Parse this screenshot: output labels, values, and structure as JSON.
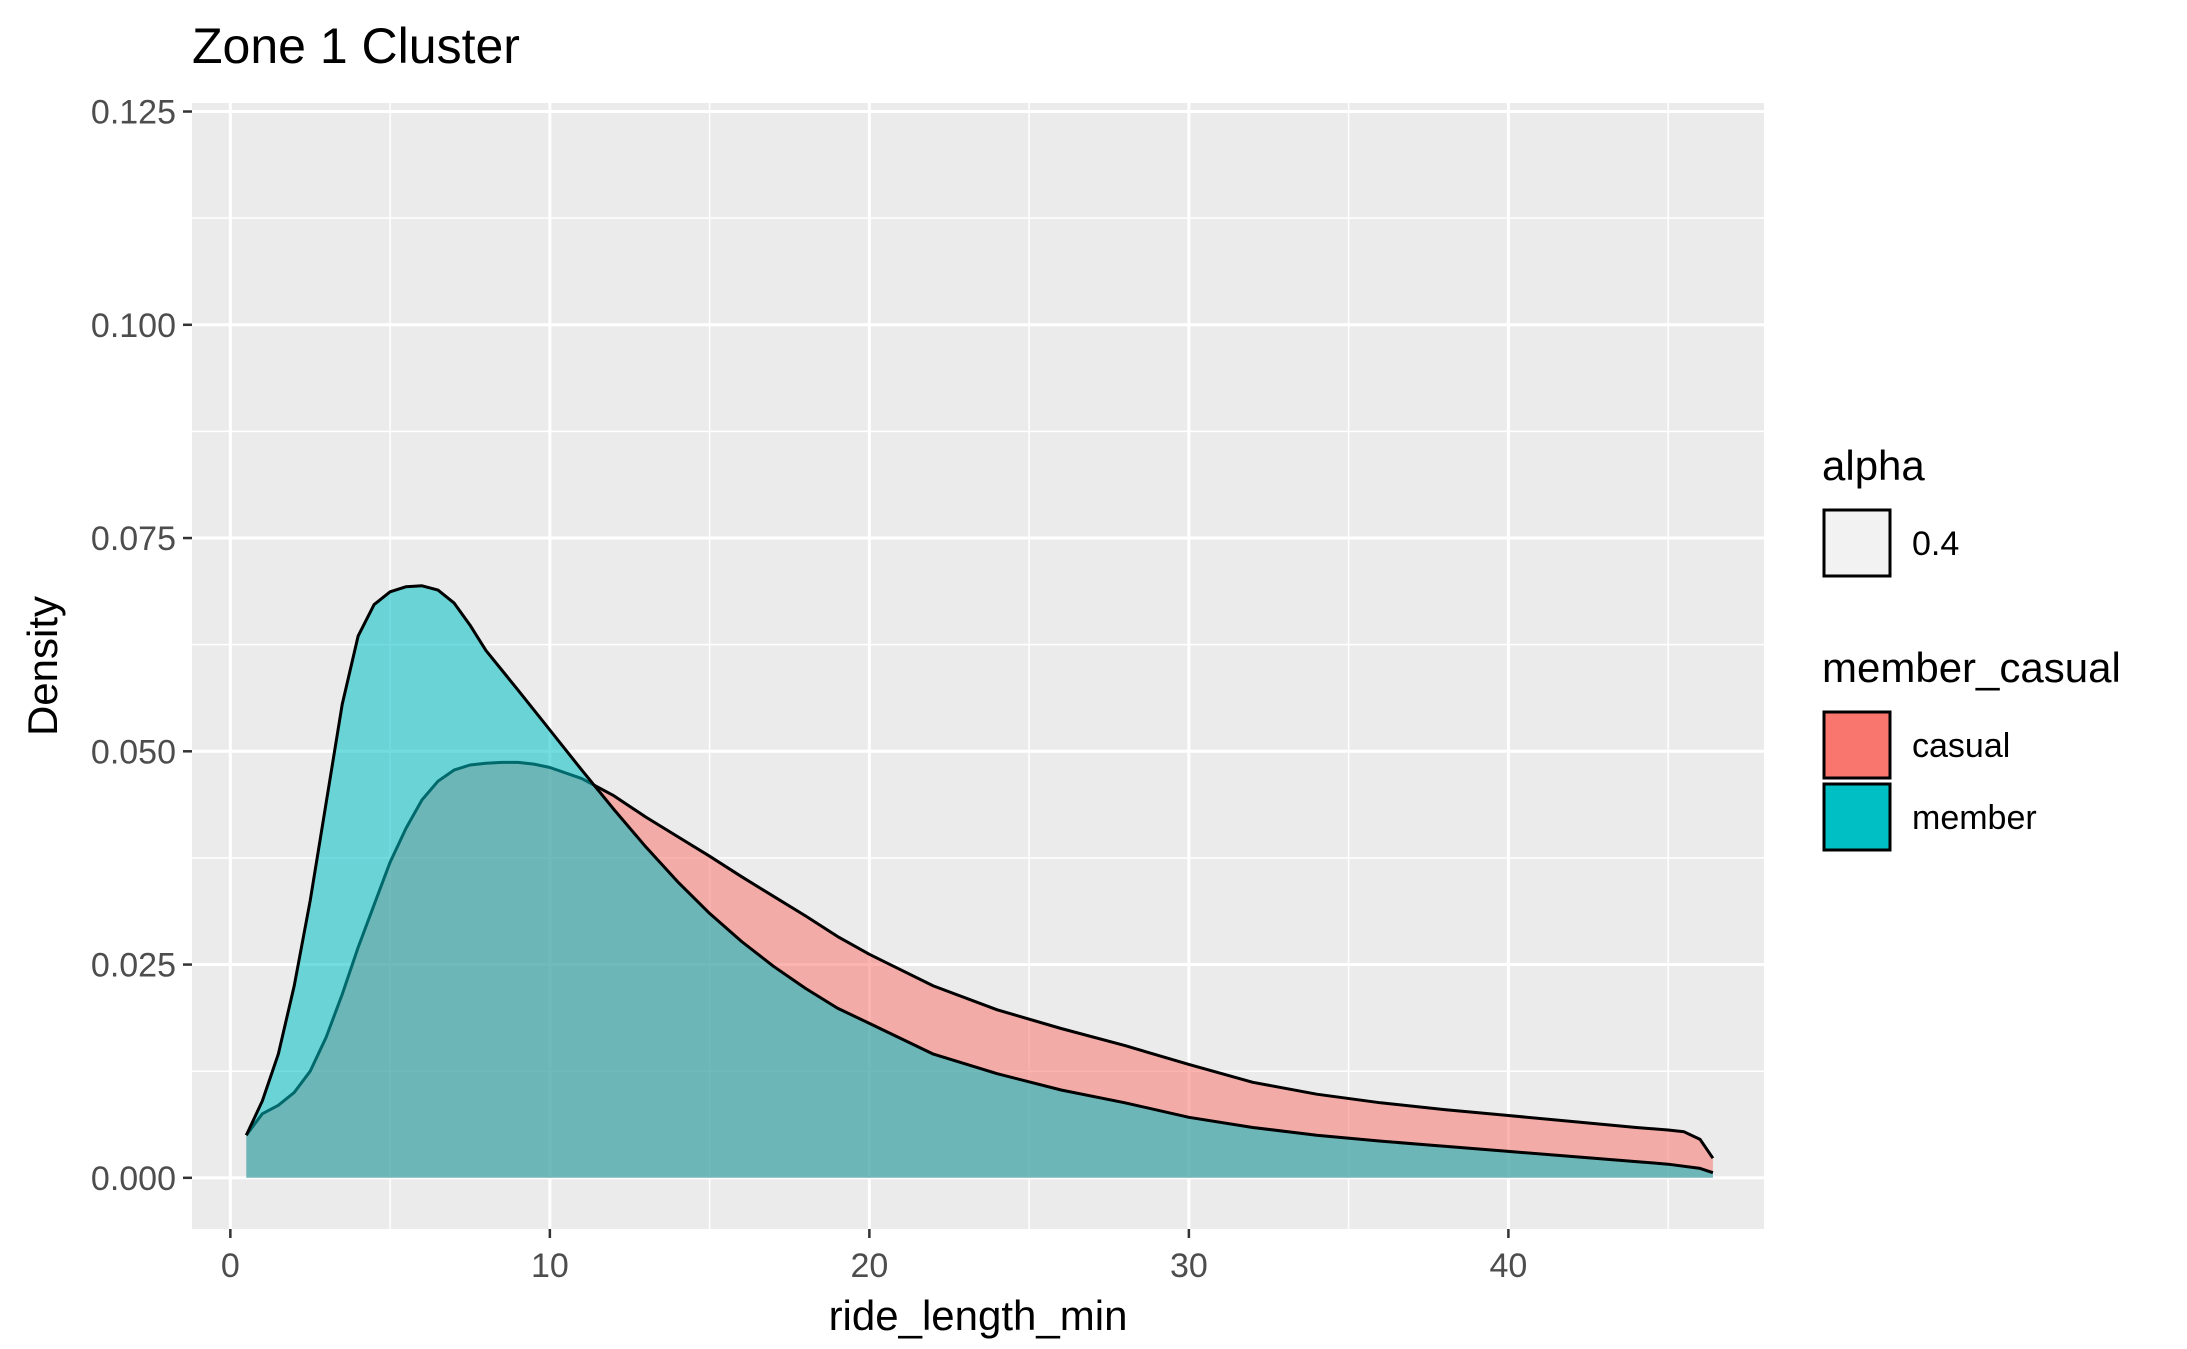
{
  "chart_data": {
    "type": "area",
    "title": "Zone 1 Cluster",
    "xlabel": "ride_length_min",
    "ylabel": "Density",
    "xlim": [
      -1.2,
      48
    ],
    "ylim": [
      -0.006,
      0.126
    ],
    "x_ticks": [
      0,
      10,
      20,
      30,
      40
    ],
    "x_tick_labels": [
      "0",
      "10",
      "20",
      "30",
      "40"
    ],
    "y_ticks": [
      0.0,
      0.025,
      0.05,
      0.075,
      0.1,
      0.125
    ],
    "y_tick_labels": [
      "0.000",
      "0.025",
      "0.050",
      "0.075",
      "0.100",
      "0.125"
    ],
    "grid": true,
    "background": "#ebebeb",
    "legend_position": "right",
    "legends": [
      {
        "title": "alpha",
        "entries": [
          {
            "label": "0.4",
            "color": "#f2f2f2"
          }
        ]
      },
      {
        "title": "member_casual",
        "entries": [
          {
            "label": "casual",
            "color": "#F8766D"
          },
          {
            "label": "member",
            "color": "#00BFC4"
          }
        ]
      }
    ],
    "series": [
      {
        "name": "casual",
        "color": "#F8766D",
        "alpha": 0.55,
        "points": [
          [
            0.5,
            0.005
          ],
          [
            1,
            0.0075
          ],
          [
            1.5,
            0.0085
          ],
          [
            2,
            0.01
          ],
          [
            2.5,
            0.0125
          ],
          [
            3,
            0.0165
          ],
          [
            3.5,
            0.0215
          ],
          [
            4,
            0.027
          ],
          [
            4.5,
            0.032
          ],
          [
            5,
            0.037
          ],
          [
            5.5,
            0.041
          ],
          [
            6,
            0.0443
          ],
          [
            6.5,
            0.0465
          ],
          [
            7,
            0.0478
          ],
          [
            7.5,
            0.0484
          ],
          [
            8,
            0.0486
          ],
          [
            8.5,
            0.0487
          ],
          [
            9,
            0.0487
          ],
          [
            9.5,
            0.0485
          ],
          [
            10,
            0.0481
          ],
          [
            11,
            0.0468
          ],
          [
            12,
            0.0448
          ],
          [
            13,
            0.0423
          ],
          [
            14,
            0.04
          ],
          [
            15,
            0.0377
          ],
          [
            16,
            0.0353
          ],
          [
            17,
            0.033
          ],
          [
            18,
            0.0307
          ],
          [
            19,
            0.0283
          ],
          [
            20,
            0.0262
          ],
          [
            22,
            0.0225
          ],
          [
            24,
            0.0197
          ],
          [
            26,
            0.0175
          ],
          [
            28,
            0.0155
          ],
          [
            30,
            0.0133
          ],
          [
            32,
            0.0112
          ],
          [
            34,
            0.0098
          ],
          [
            36,
            0.0088
          ],
          [
            38,
            0.008
          ],
          [
            40,
            0.0073
          ],
          [
            42,
            0.0066
          ],
          [
            44,
            0.0059
          ],
          [
            45,
            0.0056
          ],
          [
            45.5,
            0.0054
          ],
          [
            46,
            0.0045
          ],
          [
            46.4,
            0.0023
          ]
        ]
      },
      {
        "name": "member",
        "color": "#00BFC4",
        "alpha": 0.55,
        "points": [
          [
            0.5,
            0.005
          ],
          [
            1,
            0.009
          ],
          [
            1.5,
            0.0145
          ],
          [
            2,
            0.0225
          ],
          [
            2.5,
            0.0325
          ],
          [
            3,
            0.044
          ],
          [
            3.5,
            0.0555
          ],
          [
            4,
            0.0635
          ],
          [
            4.5,
            0.0672
          ],
          [
            5,
            0.0687
          ],
          [
            5.5,
            0.0693
          ],
          [
            6,
            0.0694
          ],
          [
            6.5,
            0.0689
          ],
          [
            7,
            0.0674
          ],
          [
            7.5,
            0.0648
          ],
          [
            8,
            0.0618
          ],
          [
            9,
            0.0572
          ],
          [
            10,
            0.0525
          ],
          [
            11,
            0.0478
          ],
          [
            12,
            0.0432
          ],
          [
            13,
            0.0388
          ],
          [
            14,
            0.0347
          ],
          [
            15,
            0.031
          ],
          [
            16,
            0.0277
          ],
          [
            17,
            0.0248
          ],
          [
            18,
            0.0222
          ],
          [
            19,
            0.0199
          ],
          [
            20,
            0.0181
          ],
          [
            22,
            0.0145
          ],
          [
            24,
            0.0122
          ],
          [
            26,
            0.0103
          ],
          [
            28,
            0.0088
          ],
          [
            30,
            0.0071
          ],
          [
            32,
            0.0059
          ],
          [
            34,
            0.005
          ],
          [
            36,
            0.0043
          ],
          [
            38,
            0.0037
          ],
          [
            40,
            0.0031
          ],
          [
            42,
            0.0025
          ],
          [
            44,
            0.0019
          ],
          [
            45,
            0.0016
          ],
          [
            46,
            0.0011
          ],
          [
            46.4,
            0.0006
          ]
        ]
      }
    ]
  }
}
